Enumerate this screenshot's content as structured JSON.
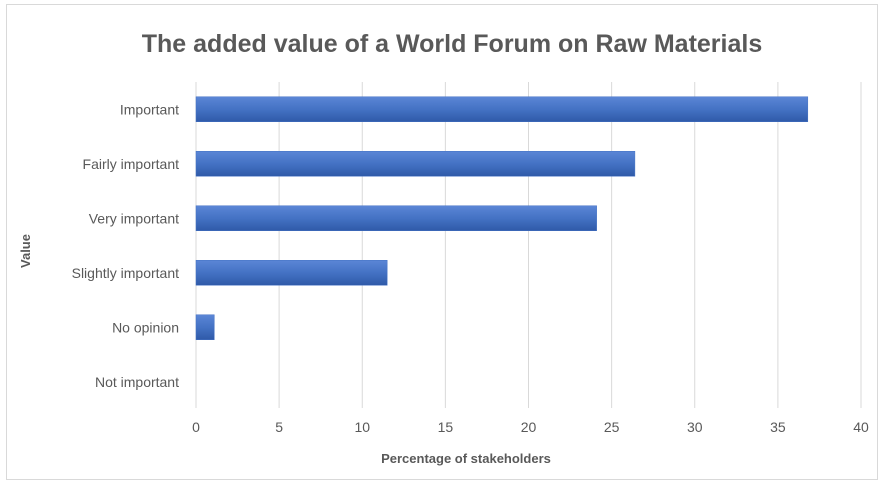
{
  "chart_data": {
    "type": "bar",
    "orientation": "horizontal",
    "title": "The added value of a World Forum on Raw Materials",
    "xlabel": "Percentage of stakeholders",
    "ylabel": "Value",
    "categories": [
      "Important",
      "Fairly important",
      "Very important",
      "Slightly important",
      "No opinion",
      "Not important"
    ],
    "values": [
      36.8,
      26.4,
      24.1,
      11.5,
      1.1,
      0
    ],
    "xlim": [
      0,
      40
    ],
    "xticks": [
      "0",
      "5",
      "10",
      "15",
      "20",
      "25",
      "30",
      "35",
      "40"
    ],
    "grid": "vertical",
    "legend": "none",
    "bar_color": "#4472c4"
  }
}
